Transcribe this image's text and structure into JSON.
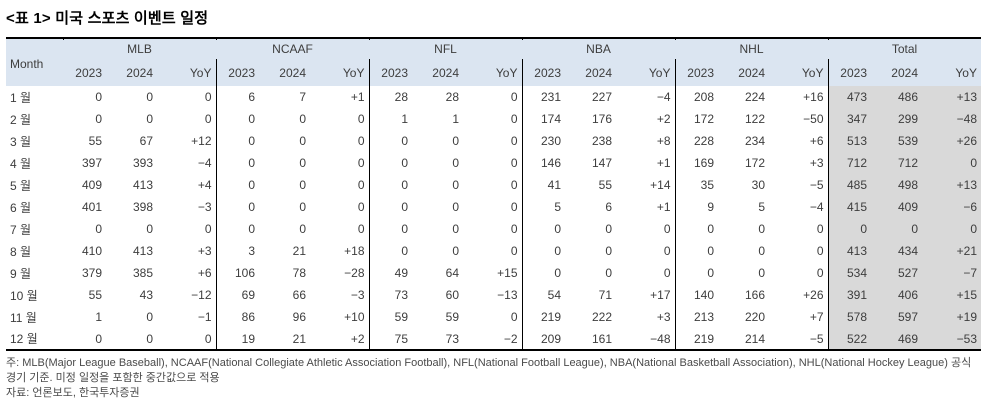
{
  "title": "<표 1> 미국 스포츠 이벤트 일정",
  "table": {
    "month_header": "Month",
    "group_headers": [
      "MLB",
      "NCAAF",
      "NFL",
      "NBA",
      "NHL",
      "Total"
    ],
    "year_headers": [
      "2023",
      "2024",
      "YoY"
    ],
    "rows": [
      {
        "month": "1 월",
        "cells": [
          "0",
          "0",
          "0",
          "6",
          "7",
          "+1",
          "28",
          "28",
          "0",
          "231",
          "227",
          "−4",
          "208",
          "224",
          "+16",
          "473",
          "486",
          "+13"
        ]
      },
      {
        "month": "2 월",
        "cells": [
          "0",
          "0",
          "0",
          "0",
          "0",
          "0",
          "1",
          "1",
          "0",
          "174",
          "176",
          "+2",
          "172",
          "122",
          "−50",
          "347",
          "299",
          "−48"
        ]
      },
      {
        "month": "3 월",
        "cells": [
          "55",
          "67",
          "+12",
          "0",
          "0",
          "0",
          "0",
          "0",
          "0",
          "230",
          "238",
          "+8",
          "228",
          "234",
          "+6",
          "513",
          "539",
          "+26"
        ]
      },
      {
        "month": "4 월",
        "cells": [
          "397",
          "393",
          "−4",
          "0",
          "0",
          "0",
          "0",
          "0",
          "0",
          "146",
          "147",
          "+1",
          "169",
          "172",
          "+3",
          "712",
          "712",
          "0"
        ]
      },
      {
        "month": "5 월",
        "cells": [
          "409",
          "413",
          "+4",
          "0",
          "0",
          "0",
          "0",
          "0",
          "0",
          "41",
          "55",
          "+14",
          "35",
          "30",
          "−5",
          "485",
          "498",
          "+13"
        ]
      },
      {
        "month": "6 월",
        "cells": [
          "401",
          "398",
          "−3",
          "0",
          "0",
          "0",
          "0",
          "0",
          "0",
          "5",
          "6",
          "+1",
          "9",
          "5",
          "−4",
          "415",
          "409",
          "−6"
        ]
      },
      {
        "month": "7 월",
        "cells": [
          "0",
          "0",
          "0",
          "0",
          "0",
          "0",
          "0",
          "0",
          "0",
          "0",
          "0",
          "0",
          "0",
          "0",
          "0",
          "0",
          "0",
          "0"
        ]
      },
      {
        "month": "8 월",
        "cells": [
          "410",
          "413",
          "+3",
          "3",
          "21",
          "+18",
          "0",
          "0",
          "0",
          "0",
          "0",
          "0",
          "0",
          "0",
          "0",
          "413",
          "434",
          "+21"
        ]
      },
      {
        "month": "9 월",
        "cells": [
          "379",
          "385",
          "+6",
          "106",
          "78",
          "−28",
          "49",
          "64",
          "+15",
          "0",
          "0",
          "0",
          "0",
          "0",
          "0",
          "534",
          "527",
          "−7"
        ]
      },
      {
        "month": "10 월",
        "cells": [
          "55",
          "43",
          "−12",
          "69",
          "66",
          "−3",
          "73",
          "60",
          "−13",
          "54",
          "71",
          "+17",
          "140",
          "166",
          "+26",
          "391",
          "406",
          "+15"
        ]
      },
      {
        "month": "11 월",
        "cells": [
          "1",
          "0",
          "−1",
          "86",
          "96",
          "+10",
          "59",
          "59",
          "0",
          "219",
          "222",
          "+3",
          "213",
          "220",
          "+7",
          "578",
          "597",
          "+19"
        ]
      },
      {
        "month": "12 월",
        "cells": [
          "0",
          "0",
          "0",
          "19",
          "21",
          "+2",
          "75",
          "73",
          "−2",
          "209",
          "161",
          "−48",
          "219",
          "214",
          "−5",
          "522",
          "469",
          "−53"
        ]
      }
    ]
  },
  "footnotes": {
    "note": "주: MLB(Major League Baseball), NCAAF(National Collegiate Athletic Association Football), NFL(National Football League), NBA(National Basketball Association), NHL(National Hockey League) 공식 경기 기준. 미정 일정을 포함한 중간값으로 적용",
    "source": "자료: 언론보도, 한국투자증권"
  },
  "colors": {
    "header_bg": "#dbe5f1",
    "total_bg": "#d9d9d9",
    "border": "#000000"
  }
}
